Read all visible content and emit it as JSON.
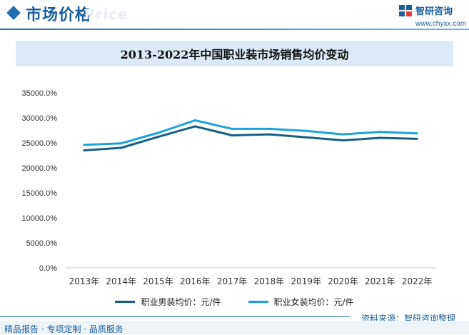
{
  "header": {
    "section_title": "市场价格",
    "watermark_text": "Price",
    "logo_text": "智研咨询",
    "logo_url": "www.chyxx.com"
  },
  "chart_data": {
    "type": "line",
    "title": "2013-2022年中国职业装市场销售均价变动",
    "categories": [
      "2013年",
      "2014年",
      "2015年",
      "2016年",
      "2017年",
      "2018年",
      "2019年",
      "2020年",
      "2021年",
      "2022年"
    ],
    "series": [
      {
        "name": "职业男装均价：元/件",
        "color": "#175f86",
        "values": [
          23500,
          24000,
          26200,
          28300,
          26500,
          26700,
          26100,
          25500,
          26000,
          25800
        ]
      },
      {
        "name": "职业女装均价：元/件",
        "color": "#1da3dc",
        "values": [
          24600,
          24900,
          27000,
          29500,
          27800,
          27800,
          27400,
          26700,
          27200,
          26900
        ]
      }
    ],
    "yticks": [
      "0.0%",
      "5000.0%",
      "10000.0%",
      "15000.0%",
      "20000.0%",
      "25000.0%",
      "30000.0%",
      "35000.0%"
    ],
    "ylim": [
      0,
      35000
    ],
    "grid": false,
    "legend_position": "bottom"
  },
  "footer": {
    "source": "资料来源：智研咨询整理",
    "slogan": "精品报告 · 专项定制 · 品质服务"
  }
}
